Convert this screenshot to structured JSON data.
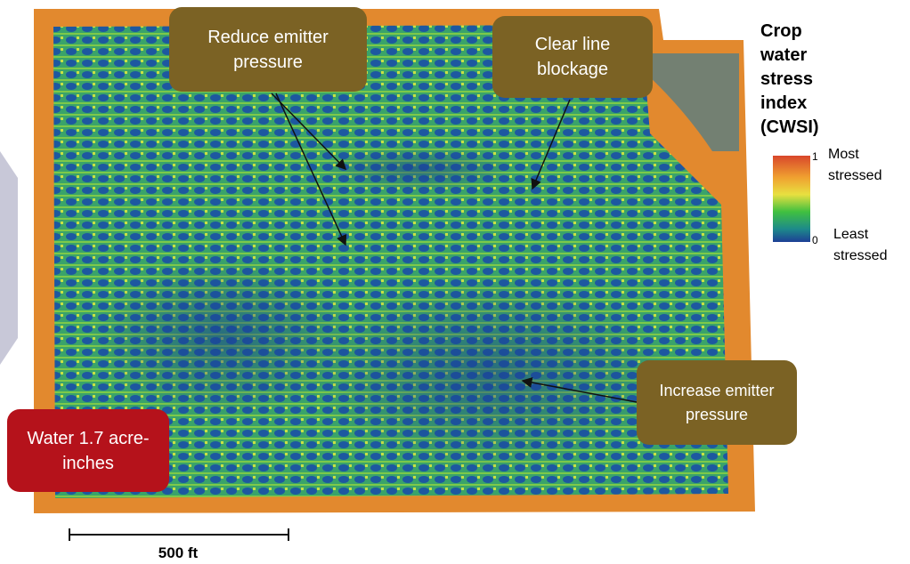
{
  "callouts": {
    "reduce": "Reduce emitter pressure",
    "clear": "Clear line blockage",
    "increase": "Increase emitter pressure",
    "water": "Water 1.7 acre-inches"
  },
  "legend": {
    "title": "Crop water stress index (CWSI)",
    "max": 1,
    "min": 0,
    "max_label": "Most stressed",
    "min_label": "Least stressed"
  },
  "scale_bar": {
    "label": "500 ft"
  }
}
